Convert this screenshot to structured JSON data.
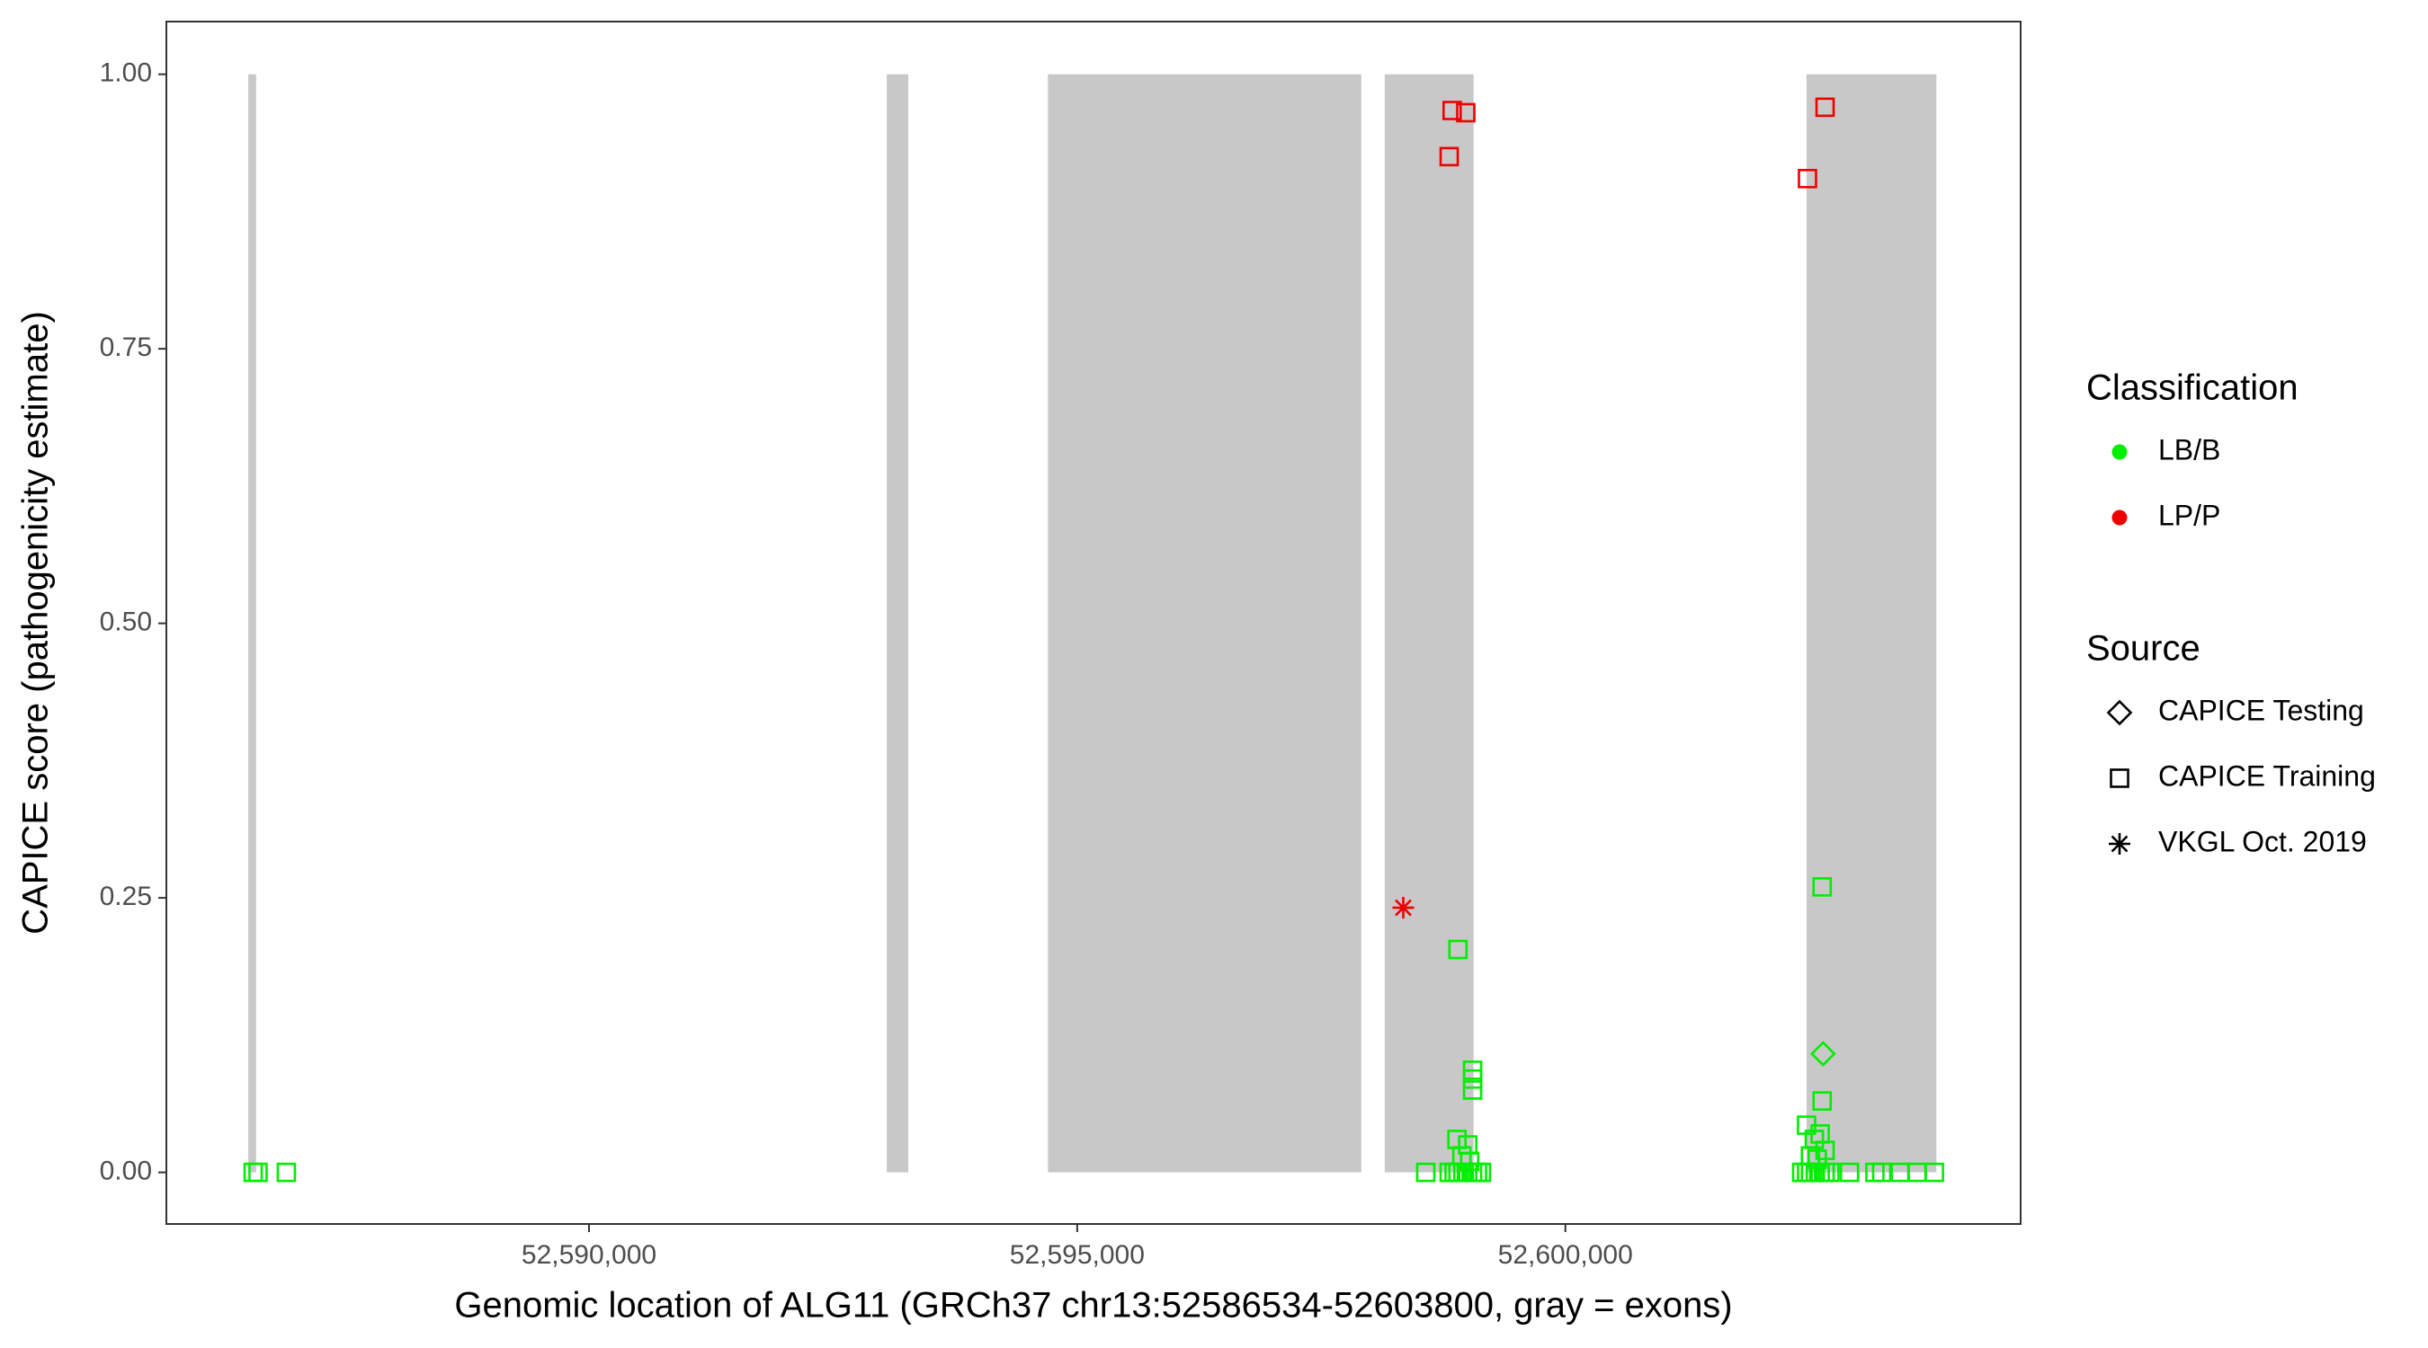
{
  "chart_data": {
    "type": "scatter",
    "x_label": "Genomic location of ALG11 (GRCh37 chr13:52586534-52603800, gray = exons)",
    "y_label": "CAPICE score (pathogenicity estimate)",
    "xlim": [
      52585671,
      52604663
    ],
    "ylim": [
      -0.047,
      1.048
    ],
    "xticks": [
      {
        "value": 52590000,
        "label": "52,590,000"
      },
      {
        "value": 52595000,
        "label": "52,595,000"
      },
      {
        "value": 52600000,
        "label": "52,600,000"
      }
    ],
    "yticks": [
      {
        "value": 0,
        "label": "0.00"
      },
      {
        "value": 0.25,
        "label": "0.25"
      },
      {
        "value": 0.5,
        "label": "0.50"
      },
      {
        "value": 0.75,
        "label": "0.75"
      },
      {
        "value": 1,
        "label": "1.00"
      }
    ],
    "exon_color": "#c8c8c8",
    "exon_y": [
      0,
      1
    ],
    "exons": [
      [
        52586510,
        52586590
      ],
      [
        52593050,
        52593270
      ],
      [
        52594700,
        52597910
      ],
      [
        52598150,
        52599060
      ],
      [
        52602470,
        52603800
      ]
    ],
    "color_legend": {
      "title": "Classification",
      "items": [
        {
          "name": "LB/B",
          "color": "#00ee00"
        },
        {
          "name": "LP/P",
          "color": "#ee0000"
        }
      ]
    },
    "shape_legend": {
      "title": "Source",
      "items": [
        {
          "name": "CAPICE Testing",
          "shape": "diamond"
        },
        {
          "name": "CAPICE Training",
          "shape": "square"
        },
        {
          "name": "VKGL Oct. 2019",
          "shape": "asterisk"
        }
      ]
    },
    "series": [
      {
        "color": "#00ee00",
        "shape": "square",
        "x": [
          52586560,
          52586610,
          52586900,
          52598900,
          52599050,
          52599050,
          52599050,
          52598890,
          52599000,
          52598940,
          52599020,
          52598570,
          52598810,
          52598860,
          52598900,
          52598950,
          52599000,
          52599050,
          52599100,
          52599140,
          52602630,
          52602630,
          52602470,
          52602610,
          52602550,
          52602510,
          52602580,
          52602660,
          52602420,
          52602470,
          52602510,
          52602560,
          52602610,
          52602660,
          52602710,
          52602910,
          52603170,
          52603240,
          52603430,
          52603600,
          52603780
        ],
        "y": [
          0,
          0,
          0,
          0.203,
          0.093,
          0.085,
          0.075,
          0.03,
          0.025,
          0.015,
          0.01,
          0,
          0,
          0,
          0,
          0,
          0,
          0,
          0,
          0,
          0.26,
          0.065,
          0.043,
          0.035,
          0.03,
          0.015,
          0.012,
          0.02,
          0,
          0,
          0,
          0,
          0,
          0,
          0,
          0,
          0,
          0,
          0,
          0,
          0
        ]
      },
      {
        "color": "#00ee00",
        "shape": "diamond",
        "x": [
          52602640
        ],
        "y": [
          0.108
        ]
      },
      {
        "color": "#ee0000",
        "shape": "square",
        "x": [
          52598810,
          52598840,
          52598980,
          52602660,
          52602480
        ],
        "y": [
          0.925,
          0.967,
          0.965,
          0.97,
          0.905
        ]
      },
      {
        "color": "#ee0000",
        "shape": "asterisk",
        "x": [
          52598340
        ],
        "y": [
          0.241
        ]
      }
    ]
  }
}
